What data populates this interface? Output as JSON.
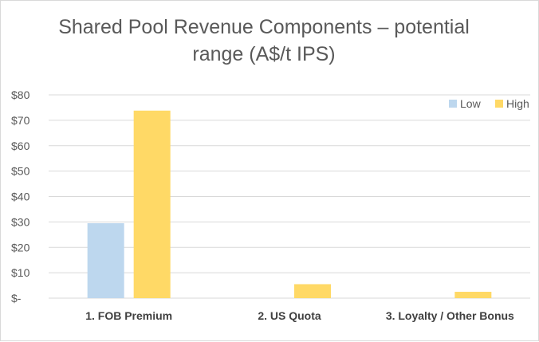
{
  "chart_data": {
    "type": "bar",
    "title": "Shared Pool Revenue Components – potential range (A$/t IPS)",
    "title_lines": [
      "Shared Pool Revenue Components – potential",
      "range (A$/t IPS)"
    ],
    "categories": [
      "1. FOB Premium",
      "2. US Quota",
      "3. Loyalty / Other Bonus"
    ],
    "series": [
      {
        "name": "Low",
        "color": "#bdd7ee",
        "values": [
          29.5,
          0,
          0
        ]
      },
      {
        "name": "High",
        "color": "#ffd966",
        "values": [
          73.8,
          5.5,
          2.5
        ]
      }
    ],
    "ylim": [
      0,
      80
    ],
    "yticks": [
      0,
      10,
      20,
      30,
      40,
      50,
      60,
      70,
      80
    ],
    "ytick_labels": [
      "$-",
      "$10",
      "$20",
      "$30",
      "$40",
      "$50",
      "$60",
      "$70",
      "$80"
    ],
    "grid": true,
    "legend_position": "top-right"
  }
}
